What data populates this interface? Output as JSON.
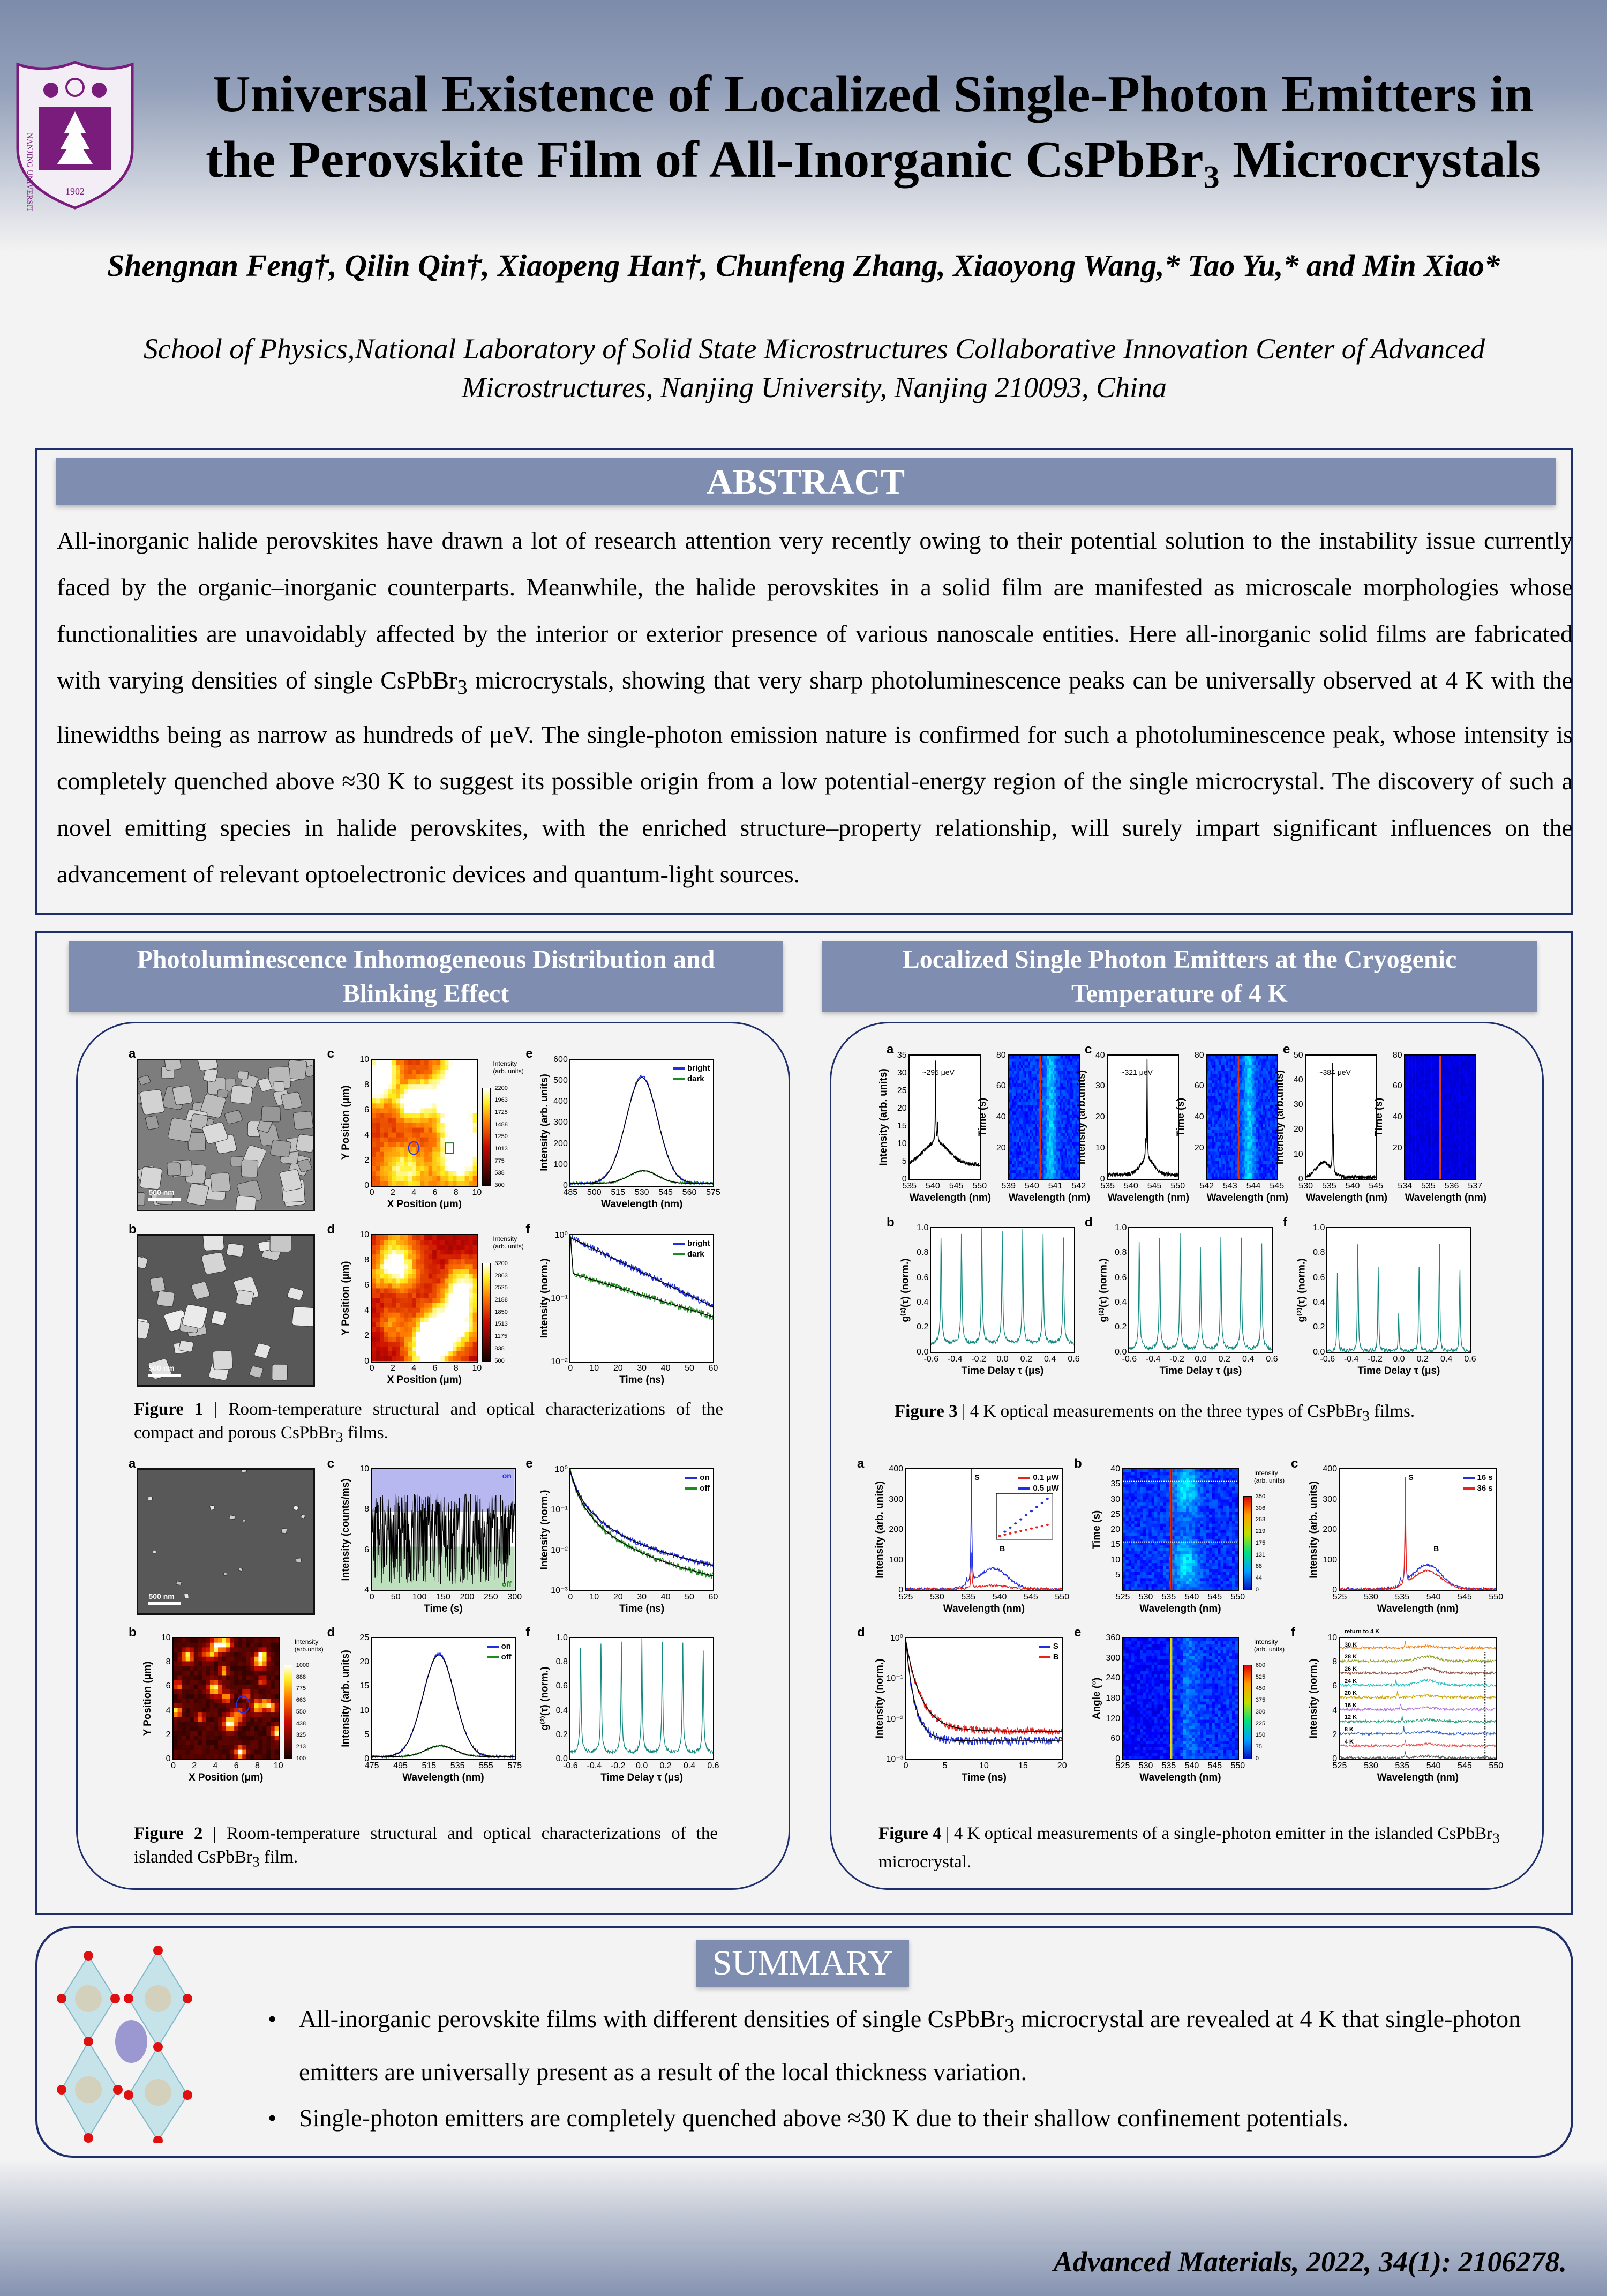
{
  "header": {
    "logo_text": "NANJING UNIVERSITY",
    "logo_year": "1902",
    "title_line1": "Universal Existence of Localized Single-Photon Emitters in",
    "title_line2_pre": "the Perovskite Film of All-Inorganic CsPbBr",
    "title_line2_sub": "3",
    "title_line2_post": " Microcrystals",
    "authors": "Shengnan Feng†, Qilin Qin†, Xiaopeng Han†, Chunfeng Zhang, Xiaoyong Wang,* Tao Yu,* and Min Xiao*",
    "affiliation": "School of Physics,National Laboratory of Solid State Microstructures Collaborative Innovation Center of Advanced Microstructures, Nanjing University, Nanjing 210093, China"
  },
  "abstract": {
    "heading": "ABSTRACT",
    "text_pre": "All-inorganic halide perovskites have drawn a lot of research attention very recently owing to their potential solution to the instability issue currently faced by the organic–inorganic counterparts. Meanwhile, the halide perovskites in a solid film are manifested as microscale morphologies whose functionalities are unavoidably affected by the interior or exterior presence of various nanoscale entities. Here all-inorganic solid films are fabricated with varying densities of single CsPbBr",
    "text_sub": "3",
    "text_post": " microcrystals, showing that very sharp photoluminescence peaks can be universally observed at 4 K with the linewidths being as narrow as hundreds of μeV. The single-photon emission nature is confirmed for such a photoluminescence peak, whose intensity is completely quenched above ≈30 K to suggest its possible origin from a low potential-energy region of the single microcrystal. The discovery of such a novel emitting species in halide perovskites, with the enriched structure–property relationship, will surely impart significant influences on the advancement of relevant optoelectronic devices and quantum-light sources."
  },
  "sections": {
    "left_heading": "Photoluminescence Inhomogeneous Distribution and Blinking Effect",
    "right_heading": "Localized Single Photon Emitters at the Cryogenic Temperature of 4 K"
  },
  "colors": {
    "blue": "#1f2fe0",
    "green": "#1f8a1f",
    "teal": "#138a80",
    "red": "#e8231e",
    "bar": "#7e8db0",
    "border": "#1f2f6b"
  },
  "fig1": {
    "caption_label": "Figure 1",
    "caption_pre": " | Room-temperature structural and optical characterizations of the compact and porous CsPbBr",
    "caption_sub": "3",
    "caption_post": " films.",
    "panels": [
      {
        "label": "a",
        "scale": "500 nm"
      },
      {
        "label": "c",
        "xlabel": "X Position (μm)",
        "ylabel": "Y Position (μm)",
        "xticks": [
          "0",
          "2",
          "4",
          "6",
          "8",
          "10"
        ],
        "yticks": [
          "0",
          "2",
          "4",
          "6",
          "8",
          "10"
        ],
        "colorbar": {
          "title": "Intensity (arb. units)",
          "ticks": [
            "2200",
            "1963",
            "1725",
            "1488",
            "1250",
            "1013",
            "775",
            "538",
            "300"
          ]
        }
      },
      {
        "label": "e",
        "xlabel": "Wavelength (nm)",
        "ylabel": "Intensity (arb. units)",
        "xticks": [
          "485",
          "500",
          "515",
          "530",
          "545",
          "560",
          "575"
        ],
        "yticks": [
          "0",
          "100",
          "200",
          "300",
          "400",
          "500",
          "600"
        ],
        "legend": [
          {
            "text": "bright",
            "color": "#1f2fe0"
          },
          {
            "text": "dark",
            "color": "#1f8a1f"
          }
        ]
      },
      {
        "label": "b",
        "scale": "500 nm"
      },
      {
        "label": "d",
        "xlabel": "X Position (μm)",
        "ylabel": "Y Position (μm)",
        "xticks": [
          "0",
          "2",
          "4",
          "6",
          "8",
          "10"
        ],
        "yticks": [
          "0",
          "2",
          "4",
          "6",
          "8",
          "10"
        ],
        "colorbar": {
          "title": "Intensity (arb. units)",
          "ticks": [
            "3200",
            "2863",
            "2525",
            "2188",
            "1850",
            "1513",
            "1175",
            "838",
            "500"
          ]
        }
      },
      {
        "label": "f",
        "xlabel": "Time (ns)",
        "ylabel": "Intensity (norm.)",
        "xticks": [
          "0",
          "10",
          "20",
          "30",
          "40",
          "50",
          "60"
        ],
        "yticks": [
          "10⁻²",
          "10⁻¹",
          "10⁰"
        ],
        "legend": [
          {
            "text": "bright",
            "color": "#1f2fe0"
          },
          {
            "text": "dark",
            "color": "#1f8a1f"
          }
        ]
      }
    ]
  },
  "fig2": {
    "caption_label": "Figure 2",
    "caption_pre": " | Room-temperature structural and optical characterizations of the islanded CsPbBr",
    "caption_sub": "3",
    "caption_post": " film.",
    "panels": [
      {
        "label": "a",
        "scale": "500 nm"
      },
      {
        "label": "c",
        "xlabel": "Time (s)",
        "ylabel": "Intensity (counts/ms)",
        "xticks": [
          "0",
          "50",
          "100",
          "150",
          "200",
          "250",
          "300"
        ],
        "yticks": [
          "4",
          "6",
          "8",
          "10"
        ],
        "notes": [
          "on",
          "off"
        ]
      },
      {
        "label": "e",
        "xlabel": "Time (ns)",
        "ylabel": "Intensity (norm.)",
        "xticks": [
          "0",
          "10",
          "20",
          "30",
          "40",
          "50",
          "60"
        ],
        "yticks": [
          "10⁻³",
          "10⁻²",
          "10⁻¹",
          "10⁰"
        ],
        "legend": [
          {
            "text": "on",
            "color": "#1f2fe0"
          },
          {
            "text": "off",
            "color": "#1f8a1f"
          }
        ]
      },
      {
        "label": "b",
        "xlabel": "X Position (μm)",
        "ylabel": "Y Position (μm)",
        "xticks": [
          "0",
          "2",
          "4",
          "6",
          "8",
          "10"
        ],
        "yticks": [
          "0",
          "2",
          "4",
          "6",
          "8",
          "10"
        ],
        "colorbar": {
          "title": "Intensity (arb.units)",
          "ticks": [
            "1000",
            "888",
            "775",
            "663",
            "550",
            "438",
            "325",
            "213",
            "100"
          ]
        }
      },
      {
        "label": "d",
        "xlabel": "Wavelength (nm)",
        "ylabel": "Intensity (arb. units)",
        "xticks": [
          "475",
          "495",
          "515",
          "535",
          "555",
          "575"
        ],
        "yticks": [
          "0",
          "5",
          "10",
          "15",
          "20",
          "25"
        ],
        "legend": [
          {
            "text": "on",
            "color": "#1f2fe0"
          },
          {
            "text": "off",
            "color": "#1f8a1f"
          }
        ]
      },
      {
        "label": "f",
        "xlabel": "Time Delay τ (μs)",
        "ylabel": "g⁽²⁾(τ) (norm.)",
        "xticks": [
          "-0.6",
          "-0.4",
          "-0.2",
          "0.0",
          "0.2",
          "0.4",
          "0.6"
        ],
        "yticks": [
          "0.0",
          "0.2",
          "0.4",
          "0.6",
          "0.8",
          "1.0"
        ]
      }
    ]
  },
  "fig3": {
    "caption_label": "Figure 3",
    "caption_pre": " |  4 K optical measurements on the three types of CsPbBr",
    "caption_sub": "3",
    "caption_post": " films.",
    "panels": [
      {
        "label": "a",
        "xlabel": "Wavelength (nm)",
        "ylabel": "Intensity (arb. units)",
        "xticks": [
          "535",
          "540",
          "545",
          "550"
        ],
        "yticks": [
          "0",
          "5",
          "10",
          "15",
          "20",
          "25",
          "30",
          "35"
        ],
        "notes": [
          "~295 μeV"
        ]
      },
      {
        "label": "",
        "xlabel": "Wavelength (nm)",
        "ylabel": "Time (s)",
        "xticks": [
          "539",
          "540",
          "541",
          "542"
        ],
        "yticks": [
          "",
          "20",
          "40",
          "60",
          "80"
        ]
      },
      {
        "label": "c",
        "xlabel": "Wavelength (nm)",
        "ylabel": "Intensity (arb.units)",
        "xticks": [
          "535",
          "540",
          "545",
          "550"
        ],
        "yticks": [
          "0",
          "10",
          "20",
          "30",
          "40"
        ],
        "notes": [
          "~321 μeV"
        ]
      },
      {
        "label": "",
        "xlabel": "Wavelength (nm)",
        "ylabel": "Time (s)",
        "xticks": [
          "542",
          "543",
          "544",
          "545"
        ],
        "yticks": [
          "",
          "20",
          "40",
          "60",
          "80"
        ]
      },
      {
        "label": "e",
        "xlabel": "Wavelength (nm)",
        "ylabel": "Intensity (arb.units)",
        "xticks": [
          "530",
          "535",
          "540",
          "545"
        ],
        "yticks": [
          "0",
          "10",
          "20",
          "30",
          "40",
          "50"
        ],
        "notes": [
          "~384 μeV"
        ]
      },
      {
        "label": "",
        "xlabel": "Wavelength (nm)",
        "ylabel": "Time (s)",
        "xticks": [
          "534",
          "535",
          "536",
          "537"
        ],
        "yticks": [
          "",
          "20",
          "40",
          "60",
          "80"
        ]
      },
      {
        "label": "b",
        "xlabel": "Time Delay τ (μs)",
        "ylabel": "g⁽²⁾(τ) (norm.)",
        "xticks": [
          "-0.6",
          "-0.4",
          "-0.2",
          "0.0",
          "0.2",
          "0.4",
          "0.6"
        ],
        "yticks": [
          "0.0",
          "0.2",
          "0.4",
          "0.6",
          "0.8",
          "1.0"
        ]
      },
      {
        "label": "d",
        "xlabel": "Time Delay τ (μs)",
        "ylabel": "g⁽²⁾(τ) (norm.)",
        "xticks": [
          "-0.6",
          "-0.4",
          "-0.2",
          "0.0",
          "0.2",
          "0.4",
          "0.6"
        ],
        "yticks": [
          "0.0",
          "0.2",
          "0.4",
          "0.6",
          "0.8",
          "1.0"
        ]
      },
      {
        "label": "f",
        "xlabel": "Time Delay τ (μs)",
        "ylabel": "g⁽²⁾(τ) (norm.)",
        "xticks": [
          "-0.6",
          "-0.4",
          "-0.2",
          "0.0",
          "0.2",
          "0.4",
          "0.6"
        ],
        "yticks": [
          "0.0",
          "0.2",
          "0.4",
          "0.6",
          "0.8",
          "1.0"
        ]
      }
    ]
  },
  "fig4": {
    "caption_label": "Figure 4",
    "caption_pre": " |  4 K optical measurements of a single-photon emitter in the islanded CsPbBr",
    "caption_sub": "3",
    "caption_post": " microcrystal.",
    "panels": [
      {
        "label": "a",
        "xlabel": "Wavelength (nm)",
        "ylabel": "Intensity (arb. units)",
        "xticks": [
          "525",
          "530",
          "535",
          "540",
          "545",
          "550"
        ],
        "yticks": [
          "0",
          "100",
          "200",
          "300",
          "400"
        ],
        "legend": [
          {
            "text": "0.1 μW",
            "color": "#e8231e"
          },
          {
            "text": "0.5 μW",
            "color": "#1f2fe0"
          }
        ],
        "notes": [
          "S",
          "B"
        ]
      },
      {
        "label": "b",
        "xlabel": "Wavelength (nm)",
        "ylabel": "Time (s)",
        "xticks": [
          "525",
          "530",
          "535",
          "540",
          "545",
          "550"
        ],
        "yticks": [
          "",
          "5",
          "10",
          "15",
          "20",
          "25",
          "30",
          "35",
          "40"
        ],
        "colorbar": {
          "title": "Intensity (arb. units)",
          "ticks": [
            "350",
            "306",
            "263",
            "219",
            "175",
            "131",
            "88",
            "44",
            "0"
          ]
        }
      },
      {
        "label": "c",
        "xlabel": "Wavelength (nm)",
        "ylabel": "Intensity (arb. units)",
        "xticks": [
          "525",
          "530",
          "535",
          "540",
          "545",
          "550"
        ],
        "yticks": [
          "0",
          "100",
          "200",
          "300",
          "400"
        ],
        "legend": [
          {
            "text": "16 s",
            "color": "#1f2fe0"
          },
          {
            "text": "36 s",
            "color": "#e8231e"
          }
        ],
        "notes": [
          "S",
          "B"
        ]
      },
      {
        "label": "d",
        "xlabel": "Time (ns)",
        "ylabel": "Intensity (norm.)",
        "xticks": [
          "0",
          "5",
          "10",
          "15",
          "20"
        ],
        "yticks": [
          "10⁻³",
          "10⁻²",
          "10⁻¹",
          "10⁰"
        ],
        "legend": [
          {
            "text": "S",
            "color": "#1f2fe0"
          },
          {
            "text": "B",
            "color": "#e8231e"
          }
        ]
      },
      {
        "label": "e",
        "xlabel": "Wavelength (nm)",
        "ylabel": "Angle (°)",
        "xticks": [
          "525",
          "530",
          "535",
          "540",
          "545",
          "550"
        ],
        "yticks": [
          "0",
          "60",
          "120",
          "180",
          "240",
          "300",
          "360"
        ],
        "colorbar": {
          "title": "Intensity (arb. units)",
          "ticks": [
            "600",
            "525",
            "450",
            "375",
            "300",
            "225",
            "150",
            "75",
            "0"
          ]
        }
      },
      {
        "label": "f",
        "xlabel": "Wavelength (nm)",
        "ylabel": "Intensity (norm.)",
        "xticks": [
          "525",
          "530",
          "535",
          "540",
          "545",
          "550"
        ],
        "yticks": [
          "0",
          "2",
          "4",
          "6",
          "8",
          "10"
        ],
        "notes": [
          "4 K",
          "8 K",
          "12 K",
          "16 K",
          "20 K",
          "24 K",
          "26 K",
          "28 K",
          "30 K",
          "return to 4 K"
        ]
      }
    ]
  },
  "summary": {
    "heading": "SUMMARY",
    "bullet1_pre": "All-inorganic perovskite films with different densities of single CsPbBr",
    "bullet1_sub": "3",
    "bullet1_post": " microcrystal are revealed at 4 K that single-photon emitters are universally present as a result of the local thickness variation.",
    "bullet2": "Single-photon  emitters  are  completely quenched above ≈30 K due to their shallow confinement potentials."
  },
  "citation": "Advanced Materials, 2022, 34(1): 2106278."
}
